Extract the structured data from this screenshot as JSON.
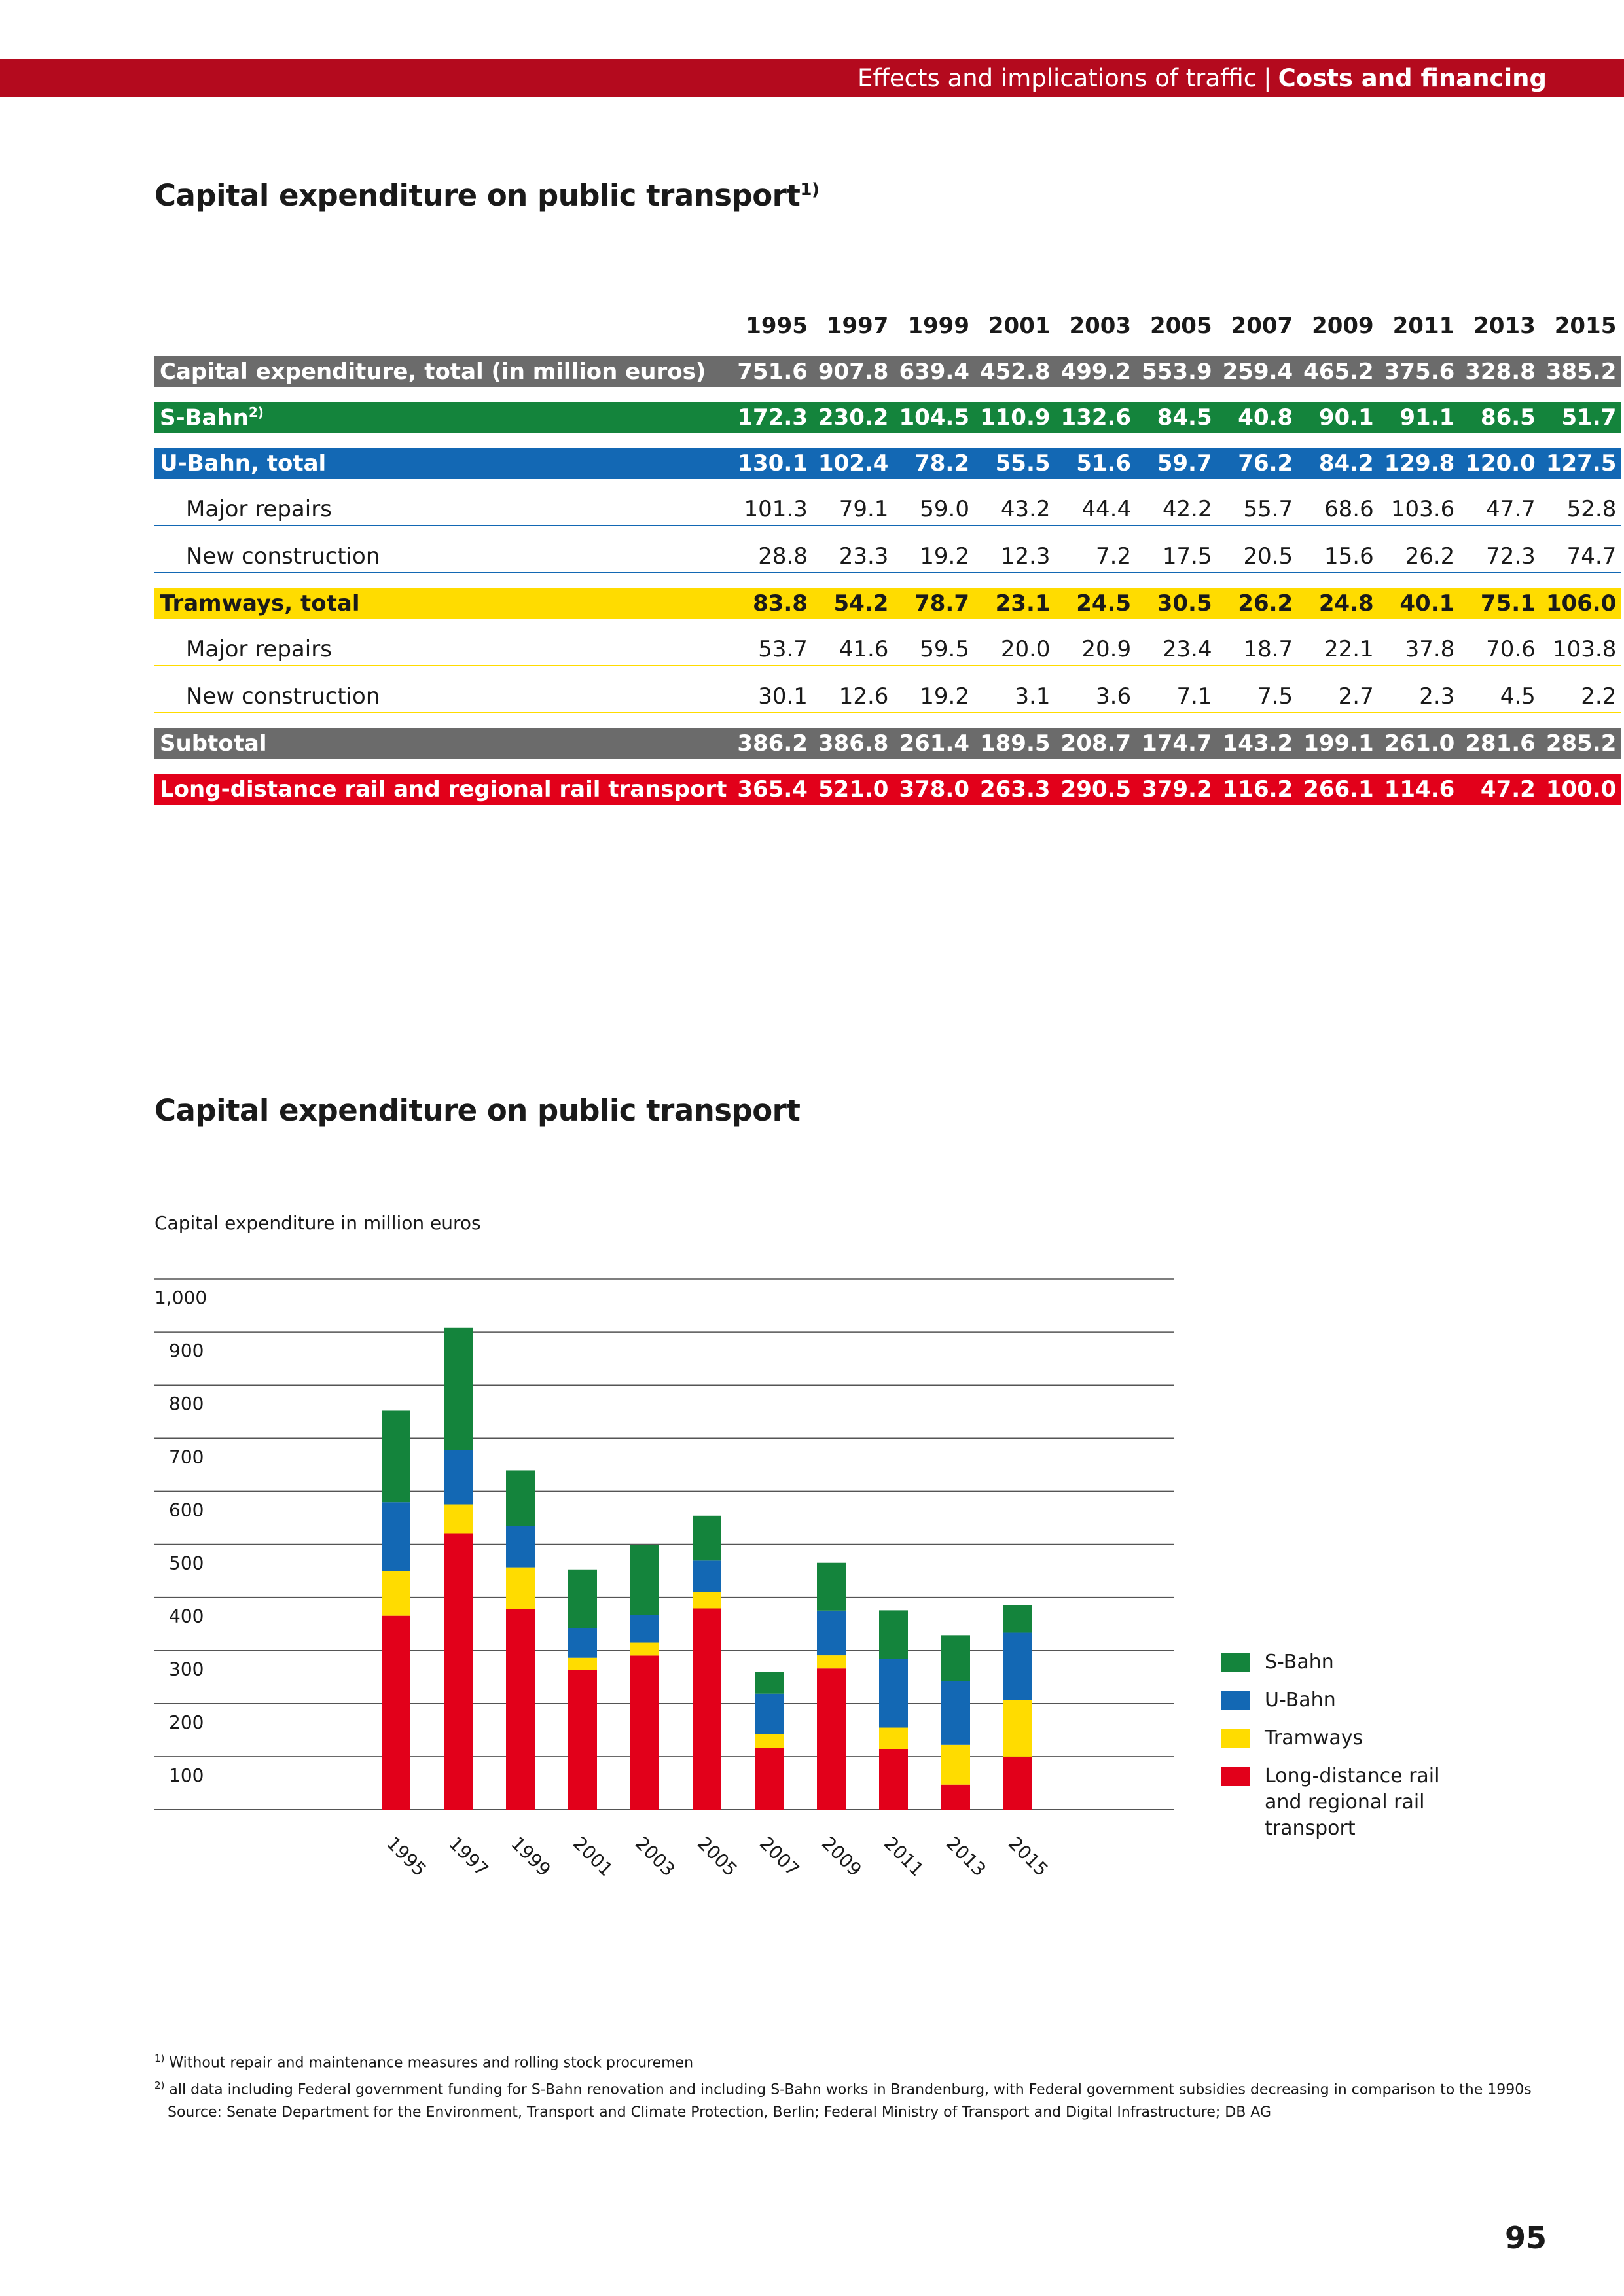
{
  "header": {
    "section": "Effects and implications of traffic",
    "separator": "|",
    "topic": "Costs and financing"
  },
  "table_title": "Capital expenditure on public transport",
  "table_title_sup": "1)",
  "table": {
    "years": [
      "1995",
      "1997",
      "1999",
      "2001",
      "2003",
      "2005",
      "2007",
      "2009",
      "2011",
      "2013",
      "2015"
    ],
    "rows": [
      {
        "label": "Capital expenditure, total (in million euros)",
        "sup": "",
        "values": [
          "751.6",
          "907.8",
          "639.4",
          "452.8",
          "499.2",
          "553.9",
          "259.4",
          "465.2",
          "375.6",
          "328.8",
          "385.2"
        ]
      },
      {
        "label": "S-Bahn",
        "sup": "2)",
        "values": [
          "172.3",
          "230.2",
          "104.5",
          "110.9",
          "132.6",
          "84.5",
          "40.8",
          "90.1",
          "91.1",
          "86.5",
          "51.7"
        ]
      },
      {
        "label": "U-Bahn, total",
        "sup": "",
        "values": [
          "130.1",
          "102.4",
          "78.2",
          "55.5",
          "51.6",
          "59.7",
          "76.2",
          "84.2",
          "129.8",
          "120.0",
          "127.5"
        ]
      },
      {
        "label": "Major repairs",
        "sup": "",
        "values": [
          "101.3",
          "79.1",
          "59.0",
          "43.2",
          "44.4",
          "42.2",
          "55.7",
          "68.6",
          "103.6",
          "47.7",
          "52.8"
        ]
      },
      {
        "label": "New construction",
        "sup": "",
        "values": [
          "28.8",
          "23.3",
          "19.2",
          "12.3",
          "7.2",
          "17.5",
          "20.5",
          "15.6",
          "26.2",
          "72.3",
          "74.7"
        ]
      },
      {
        "label": "Tramways, total",
        "sup": "",
        "values": [
          "83.8",
          "54.2",
          "78.7",
          "23.1",
          "24.5",
          "30.5",
          "26.2",
          "24.8",
          "40.1",
          "75.1",
          "106.0"
        ]
      },
      {
        "label": "Major repairs",
        "sup": "",
        "values": [
          "53.7",
          "41.6",
          "59.5",
          "20.0",
          "20.9",
          "23.4",
          "18.7",
          "22.1",
          "37.8",
          "70.6",
          "103.8"
        ]
      },
      {
        "label": "New construction",
        "sup": "",
        "values": [
          "30.1",
          "12.6",
          "19.2",
          "3.1",
          "3.6",
          "7.1",
          "7.5",
          "2.7",
          "2.3",
          "4.5",
          "2.2"
        ]
      },
      {
        "label": "Subtotal",
        "sup": "",
        "values": [
          "386.2",
          "386.8",
          "261.4",
          "189.5",
          "208.7",
          "174.7",
          "143.2",
          "199.1",
          "261.0",
          "281.6",
          "285.2"
        ]
      },
      {
        "label": "Long-distance rail and regional rail transport",
        "sup": "",
        "values": [
          "365.4",
          "521.0",
          "378.0",
          "263.3",
          "290.5",
          "379.2",
          "116.2",
          "266.1",
          "114.6",
          "47.2",
          "100.0"
        ]
      }
    ]
  },
  "chart_title": "Capital expenditure on public transport",
  "chart_ylabel": "Capital expenditure in million euros",
  "chart_data": {
    "type": "bar",
    "stacked": true,
    "title": "Capital expenditure on public transport",
    "xlabel": "",
    "ylabel": "Capital expenditure in million euros",
    "ylim": [
      0,
      1000
    ],
    "yticks": [
      100,
      200,
      300,
      400,
      500,
      600,
      700,
      800,
      900,
      1000
    ],
    "ytick_labels": [
      "100",
      "200",
      "300",
      "400",
      "500",
      "600",
      "700",
      "800",
      "900",
      "1,000"
    ],
    "grid": true,
    "legend_position": "right",
    "categories": [
      "1995",
      "1997",
      "1999",
      "2001",
      "2003",
      "2005",
      "2007",
      "2009",
      "2011",
      "2013",
      "2015"
    ],
    "series": [
      {
        "name": "Long-distance rail and regional rail transport",
        "color": "#e2001a",
        "values": [
          365.4,
          521.0,
          378.0,
          263.3,
          290.5,
          379.2,
          116.2,
          266.1,
          114.6,
          47.2,
          100.0
        ]
      },
      {
        "name": "Tramways",
        "color": "#ffdc00",
        "values": [
          83.8,
          54.2,
          78.7,
          23.1,
          24.5,
          30.5,
          26.2,
          24.8,
          40.1,
          75.1,
          106.0
        ]
      },
      {
        "name": "U-Bahn",
        "color": "#1368b4",
        "values": [
          130.1,
          102.4,
          78.2,
          55.5,
          51.6,
          59.7,
          76.2,
          84.2,
          129.8,
          120.0,
          127.5
        ]
      },
      {
        "name": "S-Bahn",
        "color": "#14843c",
        "values": [
          172.3,
          230.2,
          104.5,
          110.9,
          132.6,
          84.5,
          40.8,
          90.1,
          91.1,
          86.5,
          51.7
        ]
      }
    ]
  },
  "legend": [
    {
      "name": "S-Bahn",
      "color": "#14843c"
    },
    {
      "name": "U-Bahn",
      "color": "#1368b4"
    },
    {
      "name": "Tramways",
      "color": "#ffdc00"
    },
    {
      "name": "Long-distance rail and regional rail transport",
      "color": "#e2001a"
    }
  ],
  "footnotes": {
    "note1_sup": "1)",
    "note1": "Without repair and maintenance measures and rolling stock procuremen",
    "note2_sup": "2)",
    "note2": "all data including Federal government funding for S-Bahn renovation and including S-Bahn works in Brandenburg, with Federal government subsidies decreasing in comparison to the 1990s",
    "source": "Source: Senate Department for the Environment, Transport and Climate Protection, Berlin; Federal Ministry of Transport and Digital Infrastructure; DB AG"
  },
  "page_number": "95"
}
